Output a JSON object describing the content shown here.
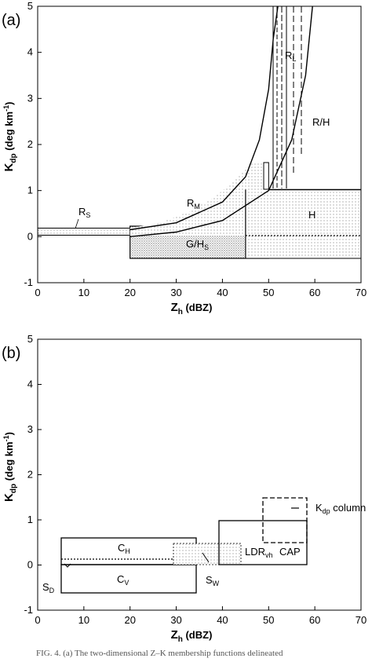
{
  "chart_data": [
    {
      "type": "area",
      "panel_label": "(a)",
      "xlabel": "Z",
      "xlabel_sub": "h",
      "xlabel_suffix": " (dBZ)",
      "ylabel_main": "K",
      "ylabel_sub": "dp",
      "ylabel_suffix": " (deg km",
      "ylabel_sup": "-1",
      "ylabel_close": ")",
      "xlim": [
        0,
        70
      ],
      "ylim": [
        -1,
        5
      ],
      "xticks": [
        "0",
        "10",
        "20",
        "30",
        "40",
        "50",
        "60",
        "70"
      ],
      "yticks": [
        "-1",
        "0",
        "1",
        "2",
        "3",
        "4",
        "5"
      ],
      "regions": [
        {
          "label": "R",
          "sub": "S",
          "x": [
            0,
            20
          ],
          "y": [
            0,
            0.15
          ],
          "fill": "light"
        },
        {
          "label": "G/H",
          "sub": "S",
          "x": [
            20,
            50
          ],
          "y": [
            -0.5,
            0.2
          ],
          "fill": "medium"
        },
        {
          "label": "R",
          "sub": "M",
          "x": [
            20,
            49
          ],
          "y": [
            0,
            1.6
          ],
          "fill": "light"
        },
        {
          "label": "R",
          "sub": "L",
          "x": [
            51,
            57
          ],
          "y": [
            1,
            5
          ],
          "fill": "none"
        },
        {
          "label": "R/H",
          "sub": "",
          "x": [
            45,
            58
          ],
          "y": [
            0,
            5
          ],
          "fill": "none"
        },
        {
          "label": "H",
          "sub": "",
          "x": [
            45,
            70
          ],
          "y": [
            -0.5,
            1
          ],
          "fill": "light"
        }
      ],
      "curves": [
        {
          "name": "upper",
          "x": [
            20,
            30,
            40,
            45,
            48,
            50,
            51,
            52
          ],
          "y": [
            0.15,
            0.3,
            0.75,
            1.3,
            2.1,
            3.2,
            4.3,
            5.0
          ]
        },
        {
          "name": "lower",
          "x": [
            20,
            30,
            40,
            50,
            55,
            58,
            59.5
          ],
          "y": [
            0.0,
            0.1,
            0.35,
            1.0,
            2.1,
            3.5,
            5.0
          ]
        }
      ]
    },
    {
      "type": "area",
      "panel_label": "(b)",
      "xlabel": "Z",
      "xlabel_sub": "h",
      "xlabel_suffix": " (dBZ)",
      "ylabel_main": "K",
      "ylabel_sub": "dp",
      "ylabel_suffix": " (deg km",
      "ylabel_sup": "-1",
      "ylabel_close": ")",
      "xlim": [
        0,
        70
      ],
      "ylim": [
        -1,
        5
      ],
      "xticks": [
        "0",
        "10",
        "20",
        "30",
        "40",
        "50",
        "60",
        "70"
      ],
      "yticks": [
        "-1",
        "0",
        "1",
        "2",
        "3",
        "4",
        "5"
      ],
      "regions": [
        {
          "label": "C",
          "sub": "H",
          "x": [
            5,
            35
          ],
          "y": [
            0,
            0.65
          ],
          "fill": "none"
        },
        {
          "label": "C",
          "sub": "V",
          "x": [
            5,
            35
          ],
          "y": [
            -0.65,
            0
          ],
          "fill": "none"
        },
        {
          "label": "S",
          "sub": "W",
          "x": [
            30,
            40
          ],
          "y": [
            0,
            0.5
          ],
          "fill": "light"
        },
        {
          "label": "LDR",
          "sub": "vh",
          "x": [
            40,
            60
          ],
          "y": [
            0,
            1
          ],
          "fill": "none"
        },
        {
          "label": "K",
          "sub": "dp",
          "x": [
            50,
            60
          ],
          "y": [
            0.5,
            1.5
          ],
          "fill": "none"
        }
      ],
      "annotations": [
        {
          "text": "CAP"
        },
        {
          "text": "S",
          "sub": "D"
        },
        {
          "text": "K",
          "sub": "dp",
          "suffix": " column"
        }
      ]
    }
  ],
  "caption": "FIG. 4. (a) The two-dimensional Z–K membership functions delineated"
}
